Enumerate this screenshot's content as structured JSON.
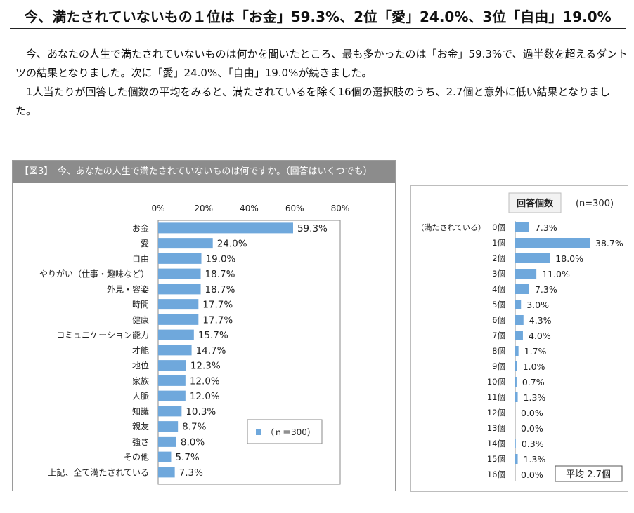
{
  "title": "今、満たされていないもの１位は「お金」59.3%、2位「愛」24.0%、3位「自由」19.0%",
  "intro": {
    "p1": "今、あなたの人生で満たされていないものは何かを聞いたところ、最も多かったのは「お金」59.3%で、過半数を超えるダントツの結果となりました。次に「愛」24.0%、「自由」19.0%が続きました。",
    "p2": "1人当たりが回答した個数の平均をみると、満たされているを除く16個の選択肢のうち、2.7個と意外に低い結果となりました。"
  },
  "chart_data": [
    {
      "type": "bar",
      "orientation": "horizontal",
      "title": "【図3】　今、あなたの人生で満たされていないものは何ですか。（回答はいくつでも）",
      "header_color": "#8c8c8c",
      "bar_color": "#6fa8dc",
      "xlim": [
        0,
        80
      ],
      "ticks": [
        "0%",
        "20%",
        "40%",
        "60%",
        "80%"
      ],
      "tick_values": [
        0,
        20,
        40,
        60,
        80
      ],
      "legend_label": "（ｎ＝300）",
      "legend_position": "bottom-right",
      "categories": [
        "お金",
        "愛",
        "自由",
        "やりがい（仕事・趣味など）",
        "外見・容姿",
        "時間",
        "健康",
        "コミュニケーション能力",
        "才能",
        "地位",
        "家族",
        "人脈",
        "知識",
        "親友",
        "強さ",
        "その他",
        "上記、全て満たされている"
      ],
      "values": [
        59.3,
        24.0,
        19.0,
        18.7,
        18.7,
        17.7,
        17.7,
        15.7,
        14.7,
        12.3,
        12.0,
        12.0,
        10.3,
        8.7,
        8.0,
        5.7,
        7.3
      ],
      "value_labels": [
        "59.3%",
        "24.0%",
        "19.0%",
        "18.7%",
        "18.7%",
        "17.7%",
        "17.7%",
        "15.7%",
        "14.7%",
        "12.3%",
        "12.0%",
        "12.0%",
        "10.3%",
        "8.7%",
        "8.0%",
        "5.7%",
        "7.3%"
      ]
    },
    {
      "type": "bar",
      "orientation": "horizontal",
      "title": "回答個数",
      "n_label": "(n=300)",
      "bar_color": "#6fa8dc",
      "categories": [
        "0個",
        "1個",
        "2個",
        "3個",
        "4個",
        "5個",
        "6個",
        "7個",
        "8個",
        "9個",
        "10個",
        "11個",
        "12個",
        "13個",
        "14個",
        "15個",
        "16個"
      ],
      "category_note": "（満たされている）",
      "values": [
        7.3,
        38.7,
        18.0,
        11.0,
        7.3,
        3.0,
        4.3,
        4.0,
        1.7,
        1.0,
        0.7,
        1.3,
        0.0,
        0.0,
        0.3,
        1.3,
        0.0
      ],
      "value_labels": [
        "7.3%",
        "38.7%",
        "18.0%",
        "11.0%",
        "7.3%",
        "3.0%",
        "4.3%",
        "4.0%",
        "1.7%",
        "1.0%",
        "0.7%",
        "1.3%",
        "0.0%",
        "0.0%",
        "0.3%",
        "1.3%",
        "0.0%"
      ],
      "average_label": "平均 2.7個"
    }
  ]
}
